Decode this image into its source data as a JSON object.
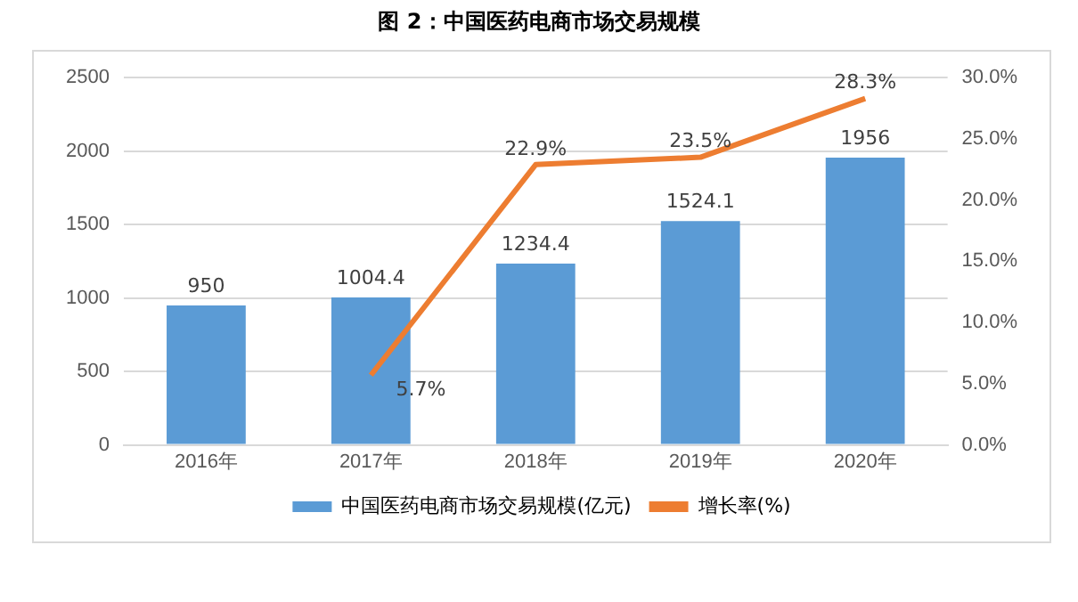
{
  "chart_data": {
    "type": "bar",
    "title": "图 2：中国医药电商市场交易规模",
    "categories": [
      "2016年",
      "2017年",
      "2018年",
      "2019年",
      "2020年"
    ],
    "series": [
      {
        "name": "中国医药电商市场交易规模(亿元)",
        "color": "#5b9bd5",
        "values": [
          950,
          1004.4,
          1234.4,
          1524.1,
          1956
        ],
        "value_labels": [
          "950",
          "1004.4",
          "1234.4",
          "1524.1",
          "1956"
        ]
      },
      {
        "name": "增长率(%)",
        "type": "line",
        "axis": "y2",
        "color": "#ed7d31",
        "values": [
          null,
          5.7,
          22.9,
          23.5,
          28.3
        ],
        "value_labels": [
          null,
          "5.7%",
          "22.9%",
          "23.5%",
          "28.3%"
        ]
      }
    ],
    "ylim": [
      0,
      2500
    ],
    "yticks": [
      0,
      500,
      1000,
      1500,
      2000,
      2500
    ],
    "y2lim": [
      0,
      30
    ],
    "y2ticks": [
      {
        "value": 0,
        "label": "0.0%"
      },
      {
        "value": 5,
        "label": "5.0%"
      },
      {
        "value": 10,
        "label": "10.0%"
      },
      {
        "value": 15,
        "label": "15.0%"
      },
      {
        "value": 20,
        "label": "20.0%"
      },
      {
        "value": 25,
        "label": "25.0%"
      },
      {
        "value": 30,
        "label": "30.0%"
      }
    ],
    "grid": "y",
    "legend": "bottom",
    "marker": "none"
  }
}
